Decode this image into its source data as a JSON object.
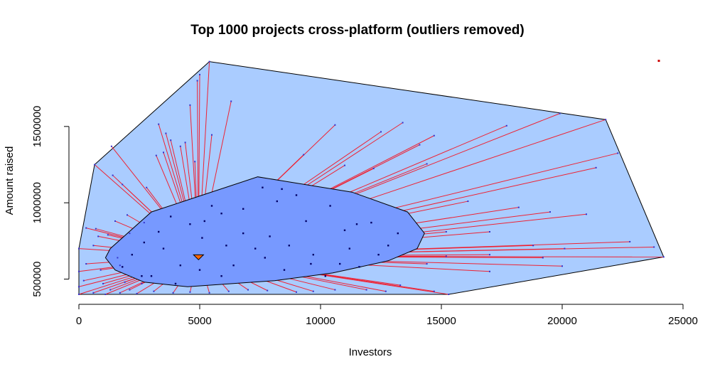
{
  "chart_data": {
    "type": "scatter",
    "title": "Top 1000 projects cross-platform (outliers removed)",
    "xlabel": "Investors",
    "ylabel": "Amount raised",
    "xlim": [
      0,
      25000
    ],
    "ylim": [
      400000,
      1900000
    ],
    "x_ticks": [
      0,
      5000,
      10000,
      15000,
      20000,
      25000
    ],
    "x_tick_labels": [
      "0",
      "5000",
      "10000",
      "15000",
      "20000",
      "25000"
    ],
    "y_ticks": [
      500000,
      1000000,
      1500000
    ],
    "y_tick_labels": [
      "500000",
      "1000000",
      "1500000"
    ],
    "grid": false,
    "legend": "none",
    "colors": {
      "outer_hull": "#aaccff",
      "inner_hull": "#7799ff",
      "spokes": "#ee2233",
      "points": "#3333cc",
      "inner_points": "#000066",
      "median": "#ff6600",
      "outlier": "#cc0000"
    },
    "median_point": [
      4950,
      650000
    ],
    "outer_hull": [
      [
        0,
        400000
      ],
      [
        15300,
        400000
      ],
      [
        24200,
        645000
      ],
      [
        21800,
        1545000
      ],
      [
        5400,
        1925000
      ],
      [
        650,
        1250000
      ],
      [
        0,
        700000
      ]
    ],
    "inner_hull": [
      [
        1100,
        640000
      ],
      [
        1300,
        700000
      ],
      [
        3000,
        940000
      ],
      [
        7400,
        1170000
      ],
      [
        11300,
        1070000
      ],
      [
        13600,
        940000
      ],
      [
        14300,
        800000
      ],
      [
        14000,
        700000
      ],
      [
        12800,
        620000
      ],
      [
        10500,
        540000
      ],
      [
        8100,
        490000
      ],
      [
        4500,
        450000
      ],
      [
        2700,
        480000
      ],
      [
        1500,
        560000
      ]
    ],
    "outer_points": [
      [
        5400,
        1925000
      ],
      [
        5000,
        1840000
      ],
      [
        4900,
        1800000
      ],
      [
        4600,
        1640000
      ],
      [
        6300,
        1665000
      ],
      [
        3300,
        1515000
      ],
      [
        3600,
        1455000
      ],
      [
        5500,
        1445000
      ],
      [
        3800,
        1410000
      ],
      [
        4400,
        1395000
      ],
      [
        1350,
        1370000
      ],
      [
        3500,
        1330000
      ],
      [
        4200,
        1370000
      ],
      [
        3200,
        1310000
      ],
      [
        4800,
        1270000
      ],
      [
        1400,
        1180000
      ],
      [
        650,
        1250000
      ],
      [
        1800,
        1120000
      ],
      [
        2800,
        1100000
      ],
      [
        9300,
        1315000
      ],
      [
        10600,
        1510000
      ],
      [
        12500,
        1465000
      ],
      [
        13400,
        1525000
      ],
      [
        14700,
        1440000
      ],
      [
        14100,
        1380000
      ],
      [
        17700,
        1505000
      ],
      [
        19900,
        1585000
      ],
      [
        21800,
        1545000
      ],
      [
        22300,
        1325000
      ],
      [
        21400,
        1230000
      ],
      [
        16100,
        1010000
      ],
      [
        18200,
        970000
      ],
      [
        19500,
        940000
      ],
      [
        21000,
        925000
      ],
      [
        14400,
        1255000
      ],
      [
        12200,
        1225000
      ],
      [
        11000,
        1245000
      ],
      [
        17000,
        810000
      ],
      [
        15200,
        810000
      ],
      [
        18800,
        720000
      ],
      [
        22800,
        745000
      ],
      [
        23800,
        710000
      ],
      [
        24200,
        645000
      ],
      [
        20100,
        700000
      ],
      [
        19200,
        640000
      ],
      [
        17000,
        660000
      ],
      [
        15200,
        650000
      ],
      [
        14400,
        600000
      ],
      [
        20000,
        585000
      ],
      [
        17000,
        550000
      ],
      [
        15300,
        400000
      ],
      [
        14700,
        420000
      ],
      [
        13300,
        460000
      ],
      [
        12700,
        420000
      ],
      [
        11900,
        430000
      ],
      [
        10600,
        430000
      ],
      [
        9700,
        420000
      ],
      [
        9000,
        415000
      ],
      [
        7800,
        425000
      ],
      [
        7000,
        430000
      ],
      [
        6200,
        420000
      ],
      [
        5400,
        410000
      ],
      [
        4600,
        415000
      ],
      [
        3900,
        410000
      ],
      [
        3100,
        420000
      ],
      [
        2400,
        405000
      ],
      [
        1700,
        410000
      ],
      [
        1100,
        400000
      ],
      [
        600,
        410000
      ],
      [
        0,
        400000
      ],
      [
        0,
        450000
      ],
      [
        200,
        490000
      ],
      [
        0,
        550000
      ],
      [
        300,
        600000
      ],
      [
        0,
        700000
      ],
      [
        600,
        720000
      ],
      [
        800,
        780000
      ],
      [
        1200,
        790000
      ],
      [
        2100,
        800000
      ],
      [
        300,
        835000
      ],
      [
        700,
        830000
      ],
      [
        1500,
        880000
      ],
      [
        2000,
        920000
      ],
      [
        2700,
        870000
      ],
      [
        1600,
        640000
      ],
      [
        1700,
        590000
      ],
      [
        900,
        560000
      ],
      [
        1900,
        480000
      ],
      [
        2600,
        470000
      ],
      [
        1000,
        470000
      ],
      [
        1300,
        430000
      ],
      [
        2100,
        430000
      ]
    ],
    "inner_points": [
      [
        5100,
        770000
      ],
      [
        5500,
        980000
      ],
      [
        5900,
        930000
      ],
      [
        6800,
        960000
      ],
      [
        7600,
        1100000
      ],
      [
        8400,
        1090000
      ],
      [
        9000,
        1050000
      ],
      [
        8200,
        1010000
      ],
      [
        9400,
        880000
      ],
      [
        10400,
        980000
      ],
      [
        11000,
        820000
      ],
      [
        11500,
        860000
      ],
      [
        12100,
        870000
      ],
      [
        13200,
        800000
      ],
      [
        12800,
        720000
      ],
      [
        11200,
        700000
      ],
      [
        10800,
        600000
      ],
      [
        9700,
        660000
      ],
      [
        8500,
        560000
      ],
      [
        7700,
        640000
      ],
      [
        6400,
        590000
      ],
      [
        5900,
        520000
      ],
      [
        5000,
        560000
      ],
      [
        4200,
        590000
      ],
      [
        3500,
        700000
      ],
      [
        3300,
        810000
      ],
      [
        2700,
        740000
      ],
      [
        2200,
        660000
      ],
      [
        1800,
        580000
      ],
      [
        3800,
        910000
      ],
      [
        4600,
        860000
      ],
      [
        5200,
        880000
      ],
      [
        3000,
        520000
      ],
      [
        6800,
        800000
      ],
      [
        7900,
        780000
      ],
      [
        8700,
        720000
      ],
      [
        9600,
        600000
      ],
      [
        10200,
        520000
      ],
      [
        11600,
        580000
      ],
      [
        12400,
        660000
      ],
      [
        4000,
        470000
      ],
      [
        2600,
        520000
      ],
      [
        6100,
        720000
      ],
      [
        7300,
        700000
      ]
    ],
    "outlier_point": [
      24000,
      1930000
    ]
  }
}
